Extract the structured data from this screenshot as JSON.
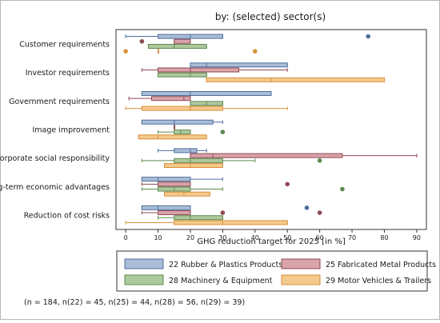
{
  "chart_data": {
    "type": "box",
    "orientation": "horizontal",
    "title": "by: (selected) sector(s)",
    "xlabel": "GHG reduction target for 2025 [in %]",
    "xlim": [
      -3,
      93
    ],
    "xticks": [
      0,
      10,
      20,
      30,
      40,
      50,
      60,
      70,
      80,
      90
    ],
    "categories": [
      "Customer requirements",
      "Investor requirements",
      "Government requirements",
      "Image improvement",
      "Corporate social responsibility",
      "Long-term economic advantages",
      "Reduction of cost risks"
    ],
    "series": [
      {
        "name": "22 Rubber & Plastics Products",
        "color": "#4f6f9e",
        "fill": "#a9bdd6",
        "boxes": [
          {
            "wmin": 0,
            "q1": 10,
            "med": 20,
            "q3": 30,
            "wmax": 30,
            "outliers": [
              75
            ]
          },
          {
            "wmin": 20,
            "q1": 20,
            "med": 25,
            "q3": 50,
            "wmax": 50,
            "outliers": []
          },
          {
            "wmin": 5,
            "q1": 5,
            "med": 20,
            "q3": 45,
            "wmax": 45,
            "outliers": []
          },
          {
            "wmin": 5,
            "q1": 5,
            "med": 15,
            "q3": 27,
            "wmax": 30,
            "outliers": []
          },
          {
            "wmin": 10,
            "q1": 15,
            "med": 20,
            "q3": 22,
            "wmax": 25,
            "outliers": []
          },
          {
            "wmin": 5,
            "q1": 5,
            "med": 10,
            "q3": 20,
            "wmax": 30,
            "outliers": []
          },
          {
            "wmin": 5,
            "q1": 5,
            "med": 10,
            "q3": 20,
            "wmax": 20,
            "outliers": [
              56
            ]
          }
        ]
      },
      {
        "name": "25 Fabricated Metal Products",
        "color": "#8e4a54",
        "fill": "#d9a3aa",
        "boxes": [
          {
            "wmin": 15,
            "q1": 15,
            "med": 20,
            "q3": 20,
            "wmax": 20,
            "outliers": [
              5
            ]
          },
          {
            "wmin": 5,
            "q1": 10,
            "med": 20,
            "q3": 35,
            "wmax": 50,
            "outliers": []
          },
          {
            "wmin": 1,
            "q1": 8,
            "med": 18,
            "q3": 20,
            "wmax": 20,
            "outliers": []
          },
          {
            "wmin": 15,
            "q1": 15,
            "med": 15,
            "q3": 15,
            "wmax": 15,
            "outliers": []
          },
          {
            "wmin": 20,
            "q1": 20,
            "med": 27,
            "q3": 67,
            "wmax": 90,
            "outliers": []
          },
          {
            "wmin": 5,
            "q1": 10,
            "med": 10,
            "q3": 20,
            "wmax": 20,
            "outliers": [
              50
            ]
          },
          {
            "wmin": 5,
            "q1": 10,
            "med": 10,
            "q3": 20,
            "wmax": 20,
            "outliers": [
              30,
              60
            ]
          }
        ]
      },
      {
        "name": "28 Machinery & Equipment",
        "color": "#5f8a4e",
        "fill": "#aec99e",
        "boxes": [
          {
            "wmin": 7,
            "q1": 7,
            "med": 15,
            "q3": 25,
            "wmax": 25,
            "outliers": []
          },
          {
            "wmin": 10,
            "q1": 10,
            "med": 20,
            "q3": 25,
            "wmax": 25,
            "outliers": []
          },
          {
            "wmin": 20,
            "q1": 20,
            "med": 25,
            "q3": 30,
            "wmax": 30,
            "outliers": []
          },
          {
            "wmin": 10,
            "q1": 15,
            "med": 17,
            "q3": 20,
            "wmax": 20,
            "outliers": [
              30
            ]
          },
          {
            "wmin": 5,
            "q1": 15,
            "med": 20,
            "q3": 30,
            "wmax": 40,
            "outliers": [
              60
            ]
          },
          {
            "wmin": 5,
            "q1": 10,
            "med": 15,
            "q3": 20,
            "wmax": 30,
            "outliers": [
              67
            ]
          },
          {
            "wmin": 10,
            "q1": 15,
            "med": 20,
            "q3": 30,
            "wmax": 30,
            "outliers": []
          }
        ]
      },
      {
        "name": "29 Motor Vehicles & Trailers",
        "color": "#d9903a",
        "fill": "#f4c98c",
        "boxes": [
          {
            "wmin": 10,
            "q1": 10,
            "med": 10,
            "q3": 10,
            "wmax": 10,
            "outliers": [
              0,
              40
            ]
          },
          {
            "wmin": 25,
            "q1": 25,
            "med": 45,
            "q3": 80,
            "wmax": 80,
            "outliers": []
          },
          {
            "wmin": 0,
            "q1": 5,
            "med": 20,
            "q3": 30,
            "wmax": 50,
            "outliers": []
          },
          {
            "wmin": 4,
            "q1": 4,
            "med": 10,
            "q3": 25,
            "wmax": 25,
            "outliers": []
          },
          {
            "wmin": 12,
            "q1": 12,
            "med": 20,
            "q3": 30,
            "wmax": 30,
            "outliers": []
          },
          {
            "wmin": 12,
            "q1": 12,
            "med": 18,
            "q3": 26,
            "wmax": 26,
            "outliers": []
          },
          {
            "wmin": 0,
            "q1": 15,
            "med": 30,
            "q3": 50,
            "wmax": 50,
            "outliers": []
          }
        ]
      }
    ],
    "legend_position": "bottom",
    "note": "(n = 184, n(22) = 45, n(25) = 44, n(28) = 56, n(29) = 39)"
  }
}
